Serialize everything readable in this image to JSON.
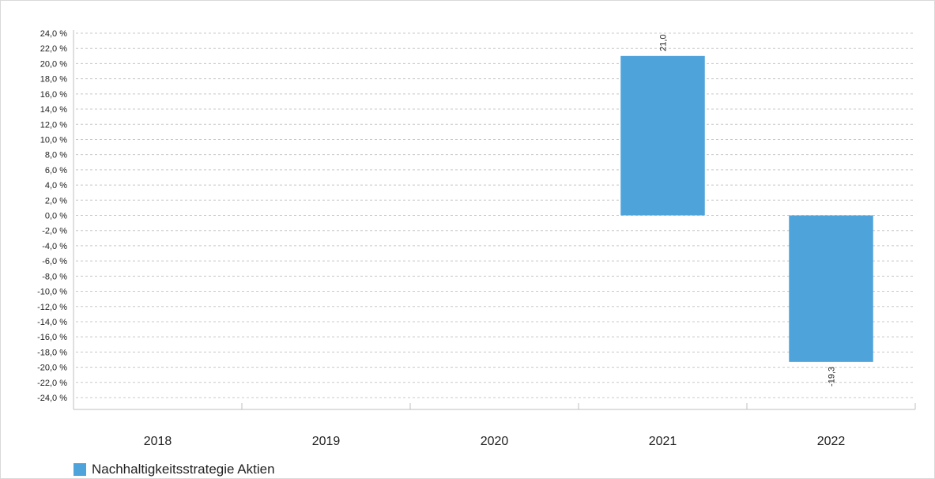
{
  "chart_data": {
    "type": "bar",
    "categories": [
      "2018",
      "2019",
      "2020",
      "2021",
      "2022"
    ],
    "series": [
      {
        "name": "Nachhaltigkeitsstrategie Aktien",
        "values": [
          null,
          null,
          null,
          21.0,
          -19.3
        ],
        "data_labels": [
          "",
          "",
          "",
          "21,0",
          "-19,3"
        ]
      }
    ],
    "ylim": [
      -24,
      24
    ],
    "ytick_step": 2,
    "ytick_labels": [
      "24,0 %",
      "22,0 %",
      "20,0 %",
      "18,0 %",
      "16,0 %",
      "14,0 %",
      "12,0 %",
      "10,0 %",
      "8,0 %",
      "6,0 %",
      "4,0 %",
      "2,0 %",
      "0,0 %",
      "-2,0 %",
      "-4,0 %",
      "-6,0 %",
      "-8,0 %",
      "-10,0 %",
      "-12,0 %",
      "-14,0 %",
      "-16,0 %",
      "-18,0 %",
      "-20,0 %",
      "-22,0 %",
      "-24,0 %"
    ],
    "grid": true,
    "legend_position": "bottom-left",
    "bar_color": "#4fa3db",
    "grid_color": "#c8c8c8",
    "axis_color": "#bfbfbf"
  },
  "legend": {
    "label": "Nachhaltigkeitsstrategie Aktien"
  }
}
